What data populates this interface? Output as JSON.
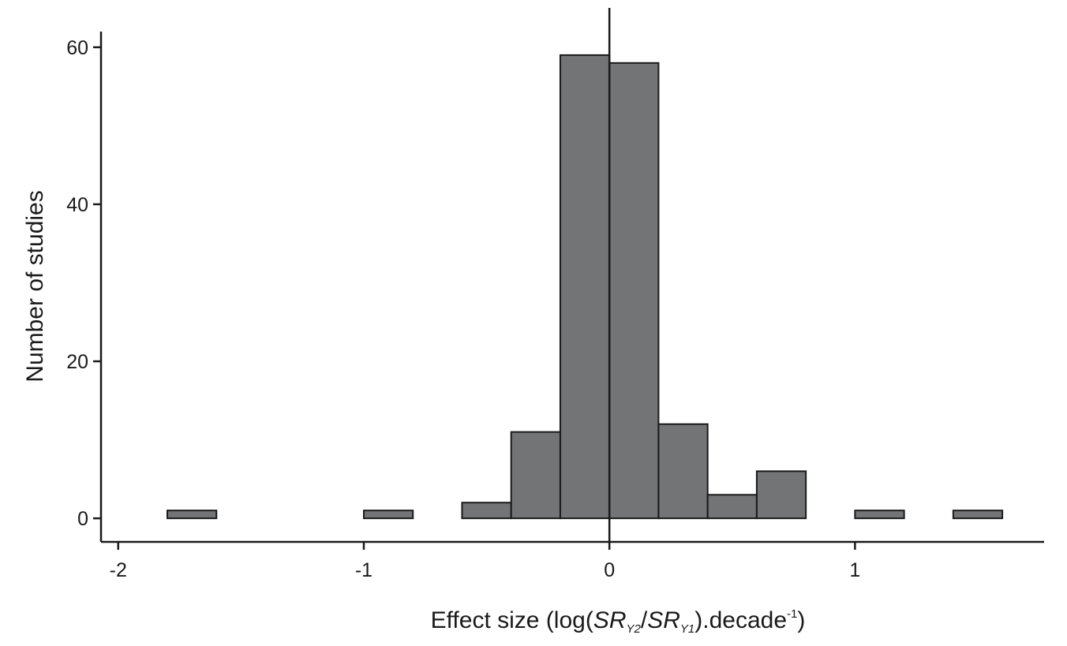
{
  "chart_data": {
    "type": "bar",
    "histogram": true,
    "bin_width": 0.2,
    "bins": [
      {
        "x0": -1.8,
        "x1": -1.6,
        "count": 1
      },
      {
        "x0": -1.0,
        "x1": -0.8,
        "count": 1
      },
      {
        "x0": -0.6,
        "x1": -0.4,
        "count": 2
      },
      {
        "x0": -0.4,
        "x1": -0.2,
        "count": 11
      },
      {
        "x0": -0.2,
        "x1": 0.0,
        "count": 59
      },
      {
        "x0": 0.0,
        "x1": 0.2,
        "count": 58
      },
      {
        "x0": 0.2,
        "x1": 0.4,
        "count": 12
      },
      {
        "x0": 0.4,
        "x1": 0.6,
        "count": 3
      },
      {
        "x0": 0.6,
        "x1": 0.8,
        "count": 6
      },
      {
        "x0": 1.0,
        "x1": 1.2,
        "count": 1
      },
      {
        "x0": 1.4,
        "x1": 1.6,
        "count": 1
      }
    ],
    "xlim": [
      -2.07,
      1.77
    ],
    "ylim": [
      -3,
      62
    ],
    "x_ticks": [
      -2,
      -1,
      0,
      1
    ],
    "x_tick_labels": [
      "-2",
      "-1",
      "0",
      "1"
    ],
    "y_ticks": [
      0,
      20,
      40,
      60
    ],
    "y_tick_labels": [
      "0",
      "20",
      "40",
      "60"
    ],
    "reference_line_x": 0,
    "xlabel": {
      "prefix": "Effect size (log(",
      "sr": "SR",
      "sub2": "Y2",
      "slash": "/",
      "sub1": "Y1",
      "mid": ").decade",
      "sup": "-1",
      "suffix": ")"
    },
    "ylabel": "Number of studies",
    "grid": false,
    "legend": "none",
    "colors": {
      "bar_fill": "#737476",
      "bar_stroke": "#1a1a1a",
      "axis": "#1a1a1a"
    }
  }
}
